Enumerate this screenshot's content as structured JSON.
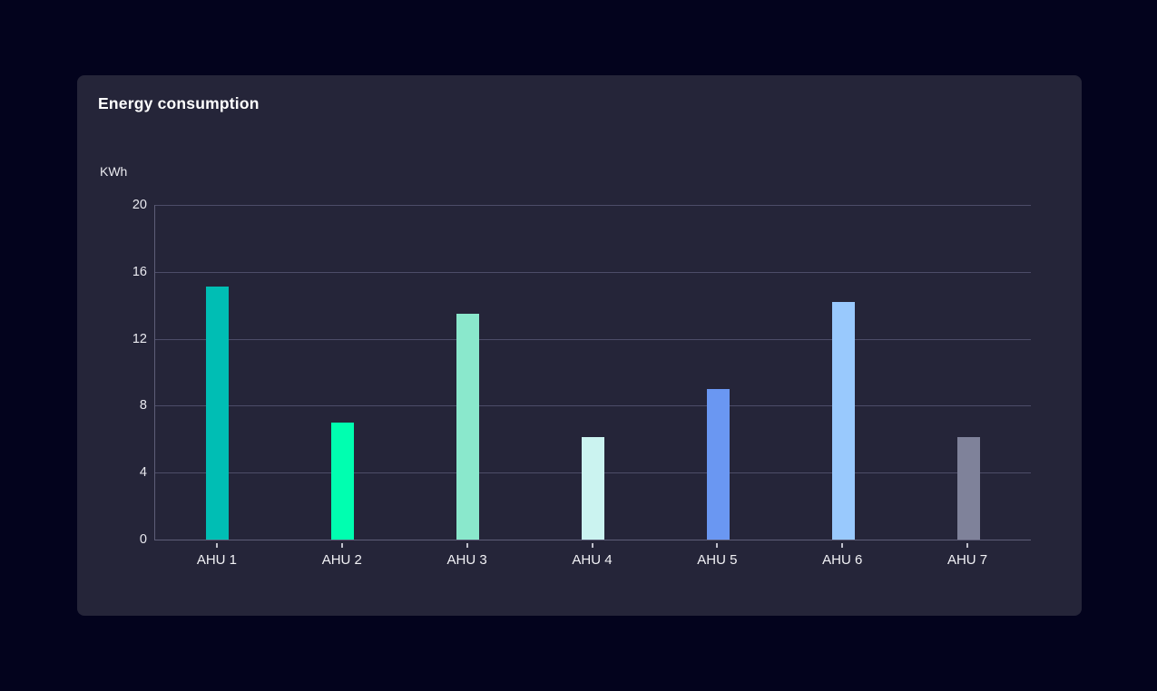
{
  "window": {
    "background": "#03031d"
  },
  "card": {
    "background": "#252539",
    "title": "Energy consumption"
  },
  "chart_data": {
    "type": "bar",
    "title": "Energy consumption",
    "ylabel": "KWh",
    "xlabel": "",
    "categories": [
      "AHU 1",
      "AHU 2",
      "AHU 3",
      "AHU 4",
      "AHU 5",
      "AHU 6",
      "AHU 7"
    ],
    "values": [
      15.1,
      7.0,
      13.5,
      6.1,
      9.0,
      14.2,
      6.1
    ],
    "bar_colors": [
      "#00beb4",
      "#00ffb0",
      "#8ae8cc",
      "#cbf3f0",
      "#6a97f2",
      "#99c9fd",
      "#7f829a"
    ],
    "ylim": [
      0,
      20
    ],
    "yticks": [
      0,
      4,
      8,
      12,
      16,
      20
    ],
    "grid": true,
    "legend": false,
    "grid_color": "#4d4d68",
    "axis_color": "#5e5e78"
  }
}
